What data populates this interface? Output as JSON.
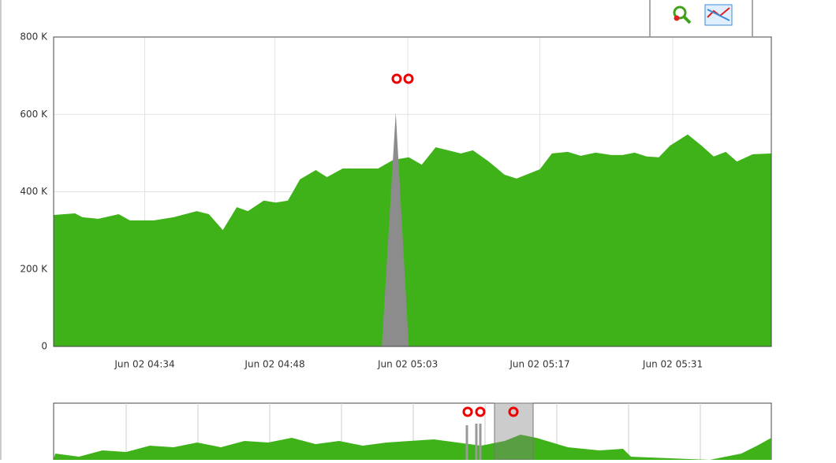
{
  "chart_data": {
    "type": "area",
    "xlim": [
      264.2,
      341.4
    ],
    "xticks": [
      {
        "value": 274,
        "label": "Jun 02 04:34"
      },
      {
        "value": 288,
        "label": "Jun 02 04:48"
      },
      {
        "value": 302.3,
        "label": "Jun 02 05:03"
      },
      {
        "value": 316.5,
        "label": "Jun 02 05:17"
      },
      {
        "value": 330.8,
        "label": "Jun 02 05:31"
      }
    ],
    "ylim": [
      0,
      800
    ],
    "yticks": [
      0,
      {
        "value": 200,
        "label": "200 K"
      },
      {
        "value": 400,
        "label": "400 K"
      },
      {
        "value": 600,
        "label": "600 K"
      },
      {
        "value": 800,
        "label": "800 K"
      }
    ],
    "grid": true,
    "series": [
      {
        "color": "#3fb21a",
        "x": [
          264.2,
          266.5,
          267.3,
          269.0,
          271.2,
          272.4,
          275.0,
          277.1,
          279.6,
          280.9,
          282.4,
          283.9,
          285.1,
          286.8,
          288.1,
          289.4,
          290.7,
          292.4,
          293.6,
          295.3,
          299.1,
          300.7,
          302.4,
          303.8,
          305.3,
          308.0,
          309.3,
          311.0,
          312.7,
          314.0,
          316.5,
          317.8,
          319.5,
          320.9,
          322.5,
          324.2,
          325.4,
          326.7,
          328.0,
          329.3,
          330.5,
          332.4,
          333.9,
          335.2,
          336.5,
          337.7,
          339.4,
          341.4
        ],
        "values": [
          340,
          344,
          334,
          330,
          342,
          326,
          326,
          334,
          350,
          342,
          301,
          360,
          350,
          377,
          372,
          377,
          432,
          456,
          438,
          460,
          460,
          482,
          489,
          470,
          515,
          499,
          507,
          478,
          444,
          434,
          458,
          499,
          503,
          493,
          501,
          495,
          495,
          501,
          491,
          489,
          519,
          548,
          519,
          491,
          503,
          478,
          497,
          499
        ]
      },
      {
        "color": "#8c8c8c",
        "x": [
          299.5,
          301.0,
          302.4
        ],
        "values": [
          0,
          605,
          0
        ]
      }
    ]
  }
}
